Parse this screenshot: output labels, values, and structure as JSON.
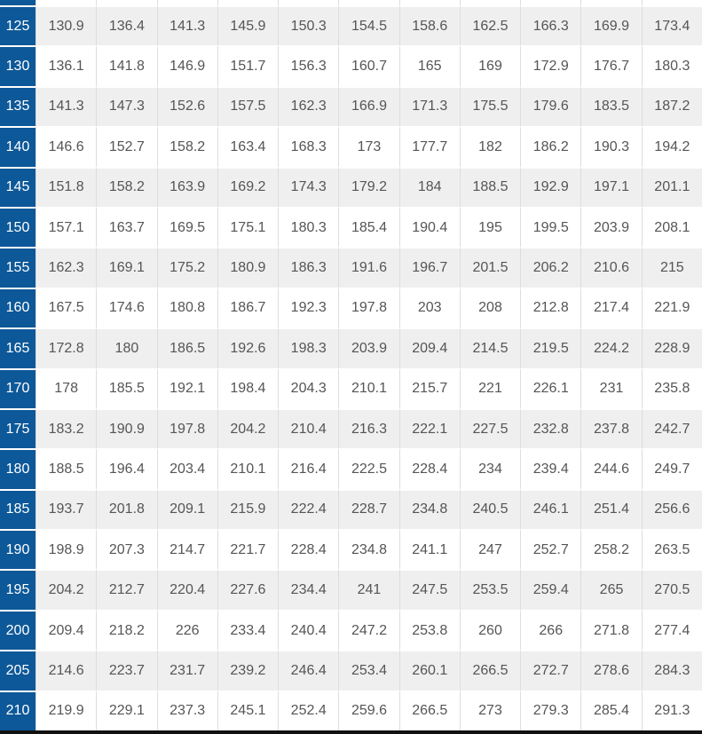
{
  "chart_data": {
    "type": "table",
    "title": "",
    "columns_count": 11,
    "row_header_step": 5,
    "partial_top_row_visible": true,
    "rows": [
      {
        "label": "125",
        "values": [
          "130.9",
          "136.4",
          "141.3",
          "145.9",
          "150.3",
          "154.5",
          "158.6",
          "162.5",
          "166.3",
          "169.9",
          "173.4"
        ]
      },
      {
        "label": "130",
        "values": [
          "136.1",
          "141.8",
          "146.9",
          "151.7",
          "156.3",
          "160.7",
          "165",
          "169",
          "172.9",
          "176.7",
          "180.3"
        ]
      },
      {
        "label": "135",
        "values": [
          "141.3",
          "147.3",
          "152.6",
          "157.5",
          "162.3",
          "166.9",
          "171.3",
          "175.5",
          "179.6",
          "183.5",
          "187.2"
        ]
      },
      {
        "label": "140",
        "values": [
          "146.6",
          "152.7",
          "158.2",
          "163.4",
          "168.3",
          "173",
          "177.7",
          "182",
          "186.2",
          "190.3",
          "194.2"
        ]
      },
      {
        "label": "145",
        "values": [
          "151.8",
          "158.2",
          "163.9",
          "169.2",
          "174.3",
          "179.2",
          "184",
          "188.5",
          "192.9",
          "197.1",
          "201.1"
        ]
      },
      {
        "label": "150",
        "values": [
          "157.1",
          "163.7",
          "169.5",
          "175.1",
          "180.3",
          "185.4",
          "190.4",
          "195",
          "199.5",
          "203.9",
          "208.1"
        ]
      },
      {
        "label": "155",
        "values": [
          "162.3",
          "169.1",
          "175.2",
          "180.9",
          "186.3",
          "191.6",
          "196.7",
          "201.5",
          "206.2",
          "210.6",
          "215"
        ]
      },
      {
        "label": "160",
        "values": [
          "167.5",
          "174.6",
          "180.8",
          "186.7",
          "192.3",
          "197.8",
          "203",
          "208",
          "212.8",
          "217.4",
          "221.9"
        ]
      },
      {
        "label": "165",
        "values": [
          "172.8",
          "180",
          "186.5",
          "192.6",
          "198.3",
          "203.9",
          "209.4",
          "214.5",
          "219.5",
          "224.2",
          "228.9"
        ]
      },
      {
        "label": "170",
        "values": [
          "178",
          "185.5",
          "192.1",
          "198.4",
          "204.3",
          "210.1",
          "215.7",
          "221",
          "226.1",
          "231",
          "235.8"
        ]
      },
      {
        "label": "175",
        "values": [
          "183.2",
          "190.9",
          "197.8",
          "204.2",
          "210.4",
          "216.3",
          "222.1",
          "227.5",
          "232.8",
          "237.8",
          "242.7"
        ]
      },
      {
        "label": "180",
        "values": [
          "188.5",
          "196.4",
          "203.4",
          "210.1",
          "216.4",
          "222.5",
          "228.4",
          "234",
          "239.4",
          "244.6",
          "249.7"
        ]
      },
      {
        "label": "185",
        "values": [
          "193.7",
          "201.8",
          "209.1",
          "215.9",
          "222.4",
          "228.7",
          "234.8",
          "240.5",
          "246.1",
          "251.4",
          "256.6"
        ]
      },
      {
        "label": "190",
        "values": [
          "198.9",
          "207.3",
          "214.7",
          "221.7",
          "228.4",
          "234.8",
          "241.1",
          "247",
          "252.7",
          "258.2",
          "263.5"
        ]
      },
      {
        "label": "195",
        "values": [
          "204.2",
          "212.7",
          "220.4",
          "227.6",
          "234.4",
          "241",
          "247.5",
          "253.5",
          "259.4",
          "265",
          "270.5"
        ]
      },
      {
        "label": "200",
        "values": [
          "209.4",
          "218.2",
          "226",
          "233.4",
          "240.4",
          "247.2",
          "253.8",
          "260",
          "266",
          "271.8",
          "277.4"
        ]
      },
      {
        "label": "205",
        "values": [
          "214.6",
          "223.7",
          "231.7",
          "239.2",
          "246.4",
          "253.4",
          "260.1",
          "266.5",
          "272.7",
          "278.6",
          "284.3"
        ]
      },
      {
        "label": "210",
        "values": [
          "219.9",
          "229.1",
          "237.3",
          "245.1",
          "252.4",
          "259.6",
          "266.5",
          "273",
          "279.3",
          "285.4",
          "291.3"
        ]
      }
    ]
  },
  "style": {
    "header_col_bg": "#0d5898",
    "header_col_text": "#ffffff",
    "stripe_bg": "#efefef",
    "row_bg": "#ffffff",
    "cell_text": "#555555",
    "grid_line": "#dddddd",
    "row_gap": "#ffffff",
    "bottom_border": "#111111"
  }
}
